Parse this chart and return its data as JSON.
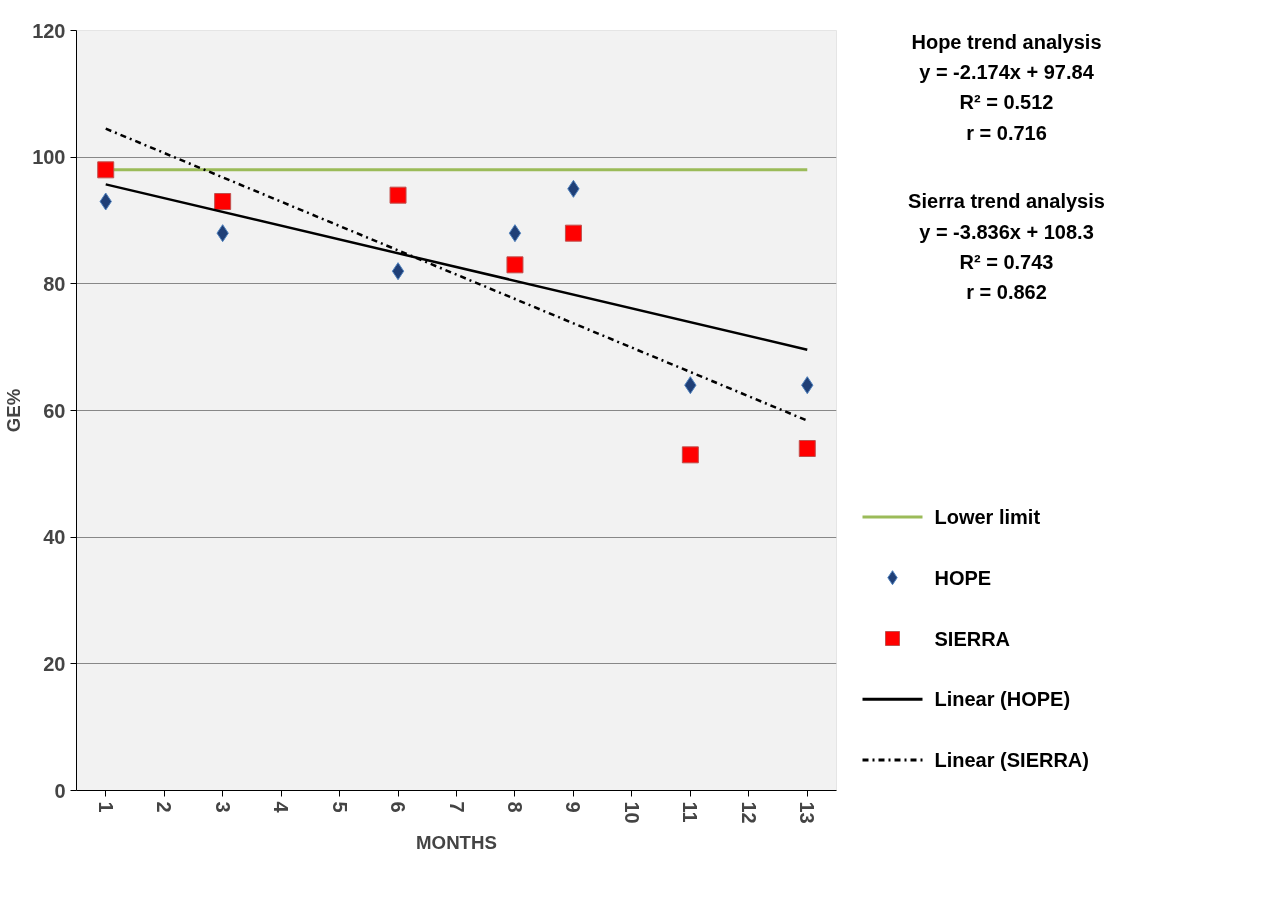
{
  "chart_data": {
    "type": "scatter",
    "xlabel": "MONTHS",
    "ylabel": "GE%",
    "categories": [
      "1",
      "2",
      "3",
      "4",
      "5",
      "6",
      "7",
      "8",
      "9",
      "10",
      "11",
      "12",
      "13"
    ],
    "ylim": [
      0,
      120
    ],
    "yticks": [
      0,
      20,
      40,
      60,
      80,
      100,
      120
    ],
    "grid": "y",
    "legend": "right",
    "series": [
      {
        "name": "Lower limit",
        "type": "line",
        "color": "#9bbb59",
        "line_style": "solid",
        "marker": "none",
        "x": [
          "1",
          "13"
        ],
        "values": [
          98,
          98
        ]
      },
      {
        "name": "HOPE",
        "color": "#1f3f77",
        "marker": "diamond",
        "x": [
          "1",
          "3",
          "6",
          "8",
          "9",
          "11",
          "13"
        ],
        "values": [
          93,
          88,
          82,
          88,
          95,
          64,
          64
        ]
      },
      {
        "name": "SIERRA",
        "color": "#ff0000",
        "marker": "square",
        "x": [
          "1",
          "3",
          "6",
          "8",
          "9",
          "11",
          "13"
        ],
        "values": [
          98,
          93,
          94,
          83,
          88,
          53,
          54
        ]
      },
      {
        "name": "Linear (HOPE)",
        "type": "line",
        "color": "#000000",
        "line_style": "solid",
        "marker": "none",
        "x": [
          "1",
          "13"
        ],
        "values": [
          95.7,
          69.6
        ]
      },
      {
        "name": "Linear (SIERRA)",
        "type": "line",
        "color": "#000000",
        "line_style": "dashdot",
        "marker": "none",
        "x": [
          "1",
          "13"
        ],
        "values": [
          104.5,
          58.4
        ]
      }
    ],
    "annotations": [
      "Hope trend analysis",
      "y = -2.174x + 97.84",
      "R² = 0.512",
      "r = 0.716",
      "Sierra trend analysis",
      "y = -3.836x + 108.3",
      "R² = 0.743",
      "r = 0.862"
    ]
  }
}
